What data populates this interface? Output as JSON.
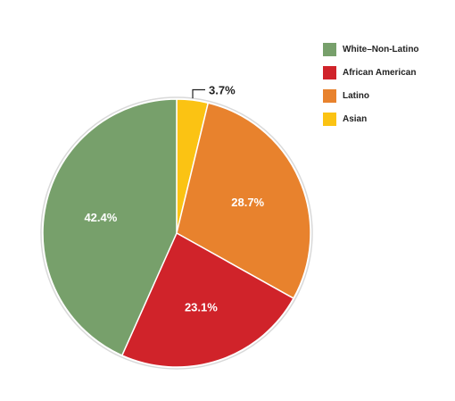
{
  "chart_data": {
    "type": "pie",
    "categories": [
      "White–Non-Latino",
      "African American",
      "Latino",
      "Asian"
    ],
    "values": [
      42.4,
      23.1,
      28.7,
      3.7
    ],
    "labels": [
      "42.4%",
      "23.1%",
      "28.7%",
      "3.7%"
    ],
    "colors": [
      "#77a06b",
      "#d0232a",
      "#e8822d",
      "#fbc313"
    ],
    "slice_order_clockwise_from_top": [
      "Asian",
      "Latino",
      "African American",
      "White–Non-Latino"
    ],
    "legend_position": "top-right",
    "title": ""
  },
  "legend": {
    "items": [
      {
        "label": "White–Non-Latino",
        "color": "#77a06b"
      },
      {
        "label": "African American",
        "color": "#d0232a"
      },
      {
        "label": "Latino",
        "color": "#e8822d"
      },
      {
        "label": "Asian",
        "color": "#fbc313"
      }
    ]
  }
}
